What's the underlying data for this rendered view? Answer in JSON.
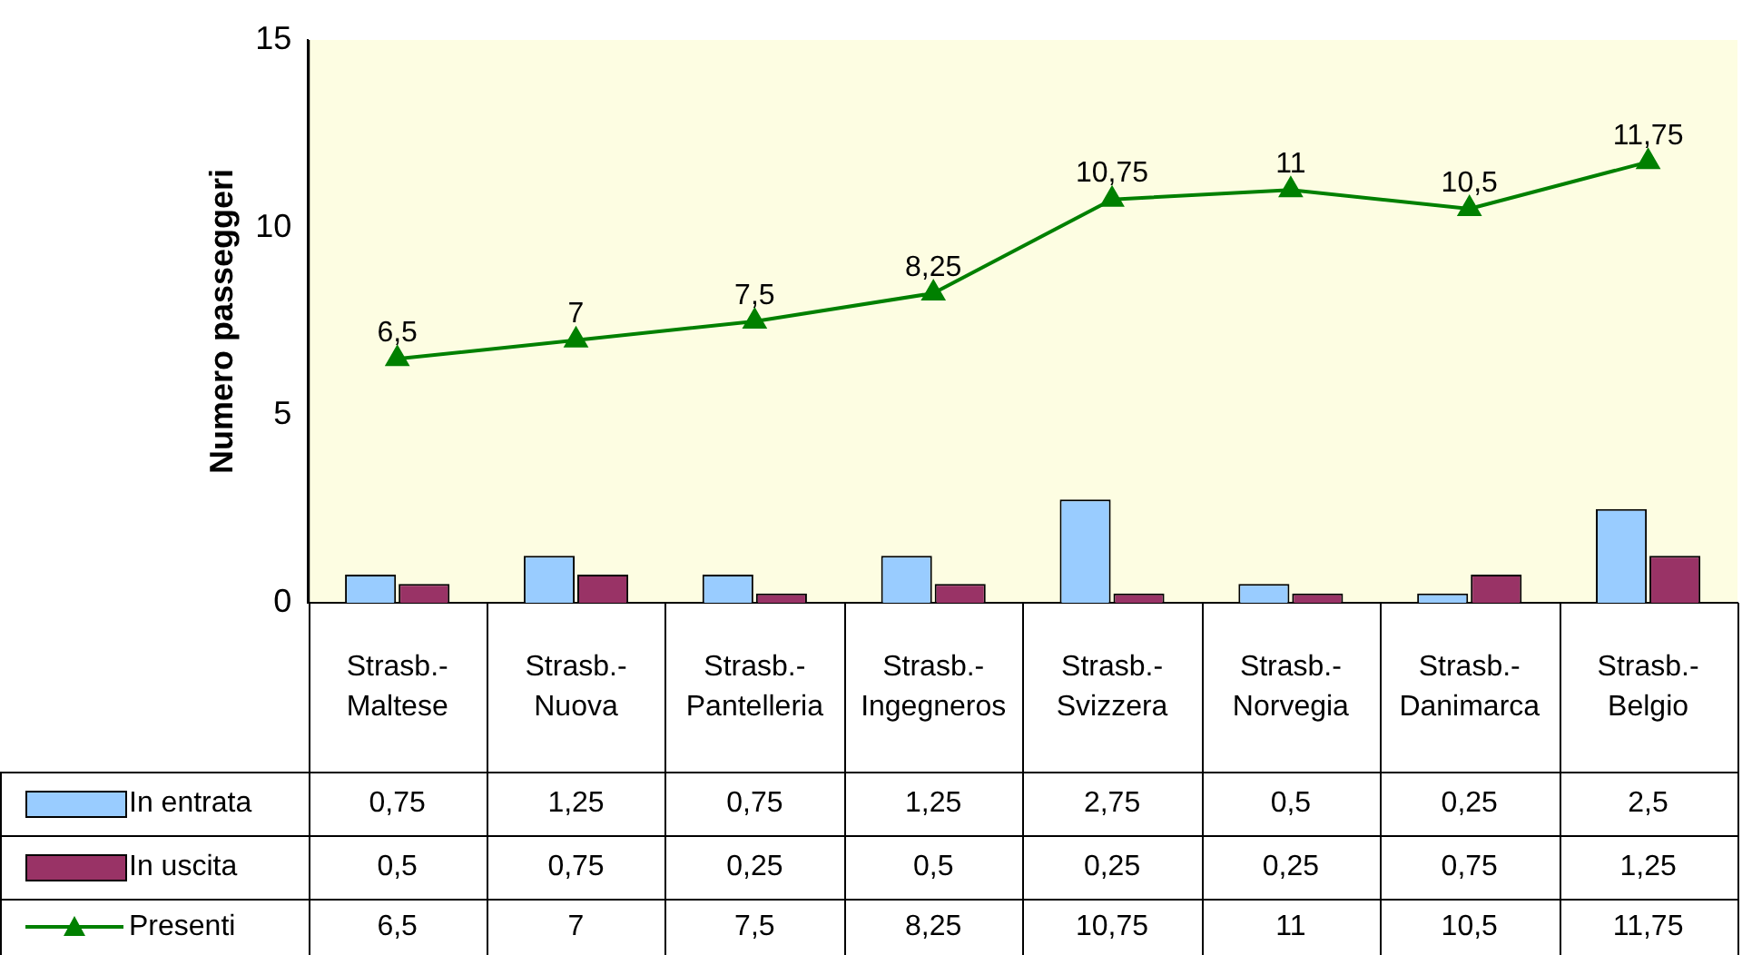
{
  "chart_data": {
    "type": "bar",
    "ylabel": "Numero passeggeri",
    "categories": [
      "Strasb.-Maltese",
      "Strasb.-Nuova",
      "Strasb.-Pantelleria",
      "Strasb.-Ingegneros",
      "Strasb.-Svizzera",
      "Strasb.-Norvegia",
      "Strasb.-Danimarca",
      "Strasb.-Belgio"
    ],
    "series": [
      {
        "name": "In entrata",
        "color": "#99ccff",
        "values": [
          0.75,
          1.25,
          0.75,
          1.25,
          2.75,
          0.5,
          0.25,
          2.5
        ],
        "value_labels": [
          "0,75",
          "1,25",
          "0,75",
          "1,25",
          "2,75",
          "0,5",
          "0,25",
          "2,5"
        ]
      },
      {
        "name": "In uscita",
        "color": "#993366",
        "values": [
          0.5,
          0.75,
          0.25,
          0.5,
          0.25,
          0.25,
          0.75,
          1.25
        ],
        "value_labels": [
          "0,5",
          "0,75",
          "0,25",
          "0,5",
          "0,25",
          "0,25",
          "0,75",
          "1,25"
        ]
      },
      {
        "name": "Presenti",
        "type": "line",
        "color": "#008000",
        "marker": "triangle",
        "values": [
          6.5,
          7,
          7.5,
          8.25,
          10.75,
          11,
          10.5,
          11.75
        ],
        "value_labels": [
          "6,5",
          "7",
          "7,5",
          "8,25",
          "10,75",
          "11",
          "10,5",
          "11,75"
        ]
      }
    ],
    "ylim": [
      0,
      15
    ],
    "yticks": [
      0,
      5,
      10,
      15
    ],
    "grid": false,
    "legend": "bottom"
  }
}
